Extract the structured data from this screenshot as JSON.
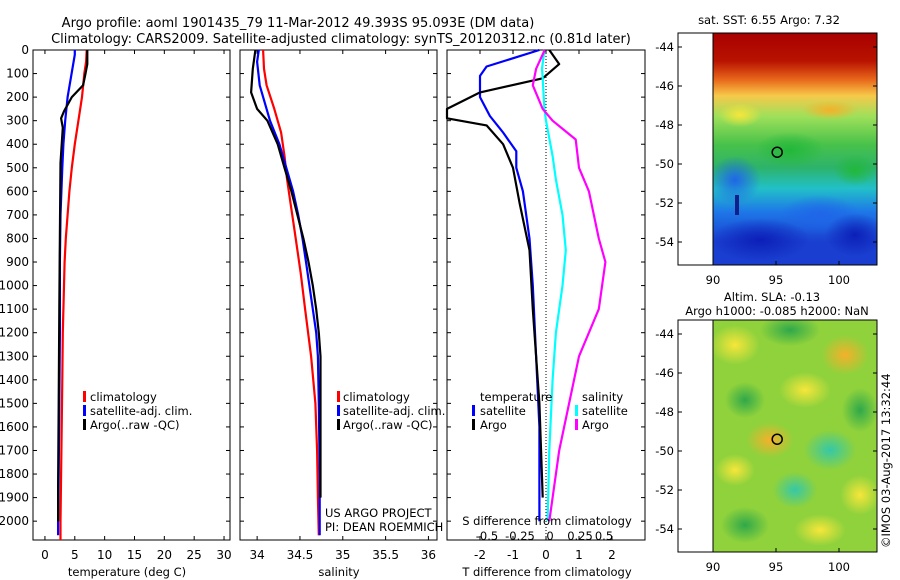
{
  "header": {
    "line1": "Argo profile: aoml 1901435_79 11-Mar-2012 49.393S 95.093E (DM data)",
    "line2": "Climatology: CARS2009. Satellite-adjusted climatology: synTS_20120312.nc (0.81d later)"
  },
  "colors": {
    "climatology": "#ff0000",
    "satellite": "#0000ff",
    "argo": "#000000",
    "salinity_satellite": "#00ffff",
    "salinity_argo": "#ff00ff"
  },
  "chart_data": [
    {
      "type": "line",
      "id": "temperature",
      "xlabel": "temperature (deg C)",
      "ylabel": "",
      "xlim": [
        -2,
        31
      ],
      "ylim": [
        2080,
        0
      ],
      "xticks": [
        0,
        5,
        10,
        15,
        20,
        25,
        30
      ],
      "yticks": [
        0,
        100,
        200,
        300,
        400,
        500,
        600,
        700,
        800,
        900,
        1000,
        1100,
        1200,
        1300,
        1400,
        1500,
        1600,
        1700,
        1800,
        1900,
        2000
      ],
      "legend": [
        "climatology",
        "satellite-adj. clim.",
        "Argo(..raw -QC)"
      ],
      "series": [
        {
          "name": "climatology",
          "color": "#ff0000",
          "points": [
            [
              7.0,
              0
            ],
            [
              6.9,
              50
            ],
            [
              6.6,
              100
            ],
            [
              6.2,
              200
            ],
            [
              5.6,
              300
            ],
            [
              5.0,
              400
            ],
            [
              4.5,
              500
            ],
            [
              4.1,
              600
            ],
            [
              3.8,
              700
            ],
            [
              3.5,
              800
            ],
            [
              3.3,
              900
            ],
            [
              3.2,
              1000
            ],
            [
              3.0,
              1200
            ],
            [
              2.9,
              1400
            ],
            [
              2.8,
              1600
            ],
            [
              2.7,
              1800
            ],
            [
              2.6,
              2000
            ],
            [
              2.6,
              2080
            ]
          ]
        },
        {
          "name": "satellite-adj. clim.",
          "color": "#0000ff",
          "points": [
            [
              5.0,
              0
            ],
            [
              5.0,
              20
            ],
            [
              4.6,
              80
            ],
            [
              3.8,
              200
            ],
            [
              3.4,
              300
            ],
            [
              3.1,
              400
            ],
            [
              2.9,
              500
            ],
            [
              2.6,
              700
            ],
            [
              2.5,
              900
            ],
            [
              2.5,
              1200
            ],
            [
              2.4,
              1500
            ],
            [
              2.3,
              1800
            ],
            [
              2.2,
              2000
            ],
            [
              2.2,
              2060
            ]
          ]
        },
        {
          "name": "Argo(..raw -QC)",
          "color": "#000000",
          "points": [
            [
              7.1,
              0
            ],
            [
              7.1,
              60
            ],
            [
              6.8,
              100
            ],
            [
              6.4,
              150
            ],
            [
              4.5,
              200
            ],
            [
              3.2,
              260
            ],
            [
              2.7,
              290
            ],
            [
              3.0,
              330
            ],
            [
              2.6,
              480
            ],
            [
              2.5,
              780
            ],
            [
              2.4,
              1100
            ],
            [
              2.3,
              1500
            ],
            [
              2.2,
              1850
            ],
            [
              2.2,
              2000
            ]
          ]
        }
      ]
    },
    {
      "type": "line",
      "id": "salinity",
      "xlabel": "salinity",
      "ylabel": "",
      "xlim": [
        33.8,
        36.1
      ],
      "ylim": [
        2080,
        0
      ],
      "xticks": [
        34,
        34.5,
        35,
        35.5,
        36
      ],
      "legend": [
        "climatology",
        "satellite-adj. clim.",
        "Argo(..raw -QC)"
      ],
      "annotations": [
        "US ARGO PROJECT",
        "PI: DEAN ROEMMICH"
      ],
      "series": [
        {
          "name": "climatology",
          "color": "#ff0000",
          "points": [
            [
              34.07,
              0
            ],
            [
              34.08,
              80
            ],
            [
              34.11,
              150
            ],
            [
              34.2,
              250
            ],
            [
              34.28,
              350
            ],
            [
              34.32,
              450
            ],
            [
              34.35,
              550
            ],
            [
              34.39,
              650
            ],
            [
              34.43,
              750
            ],
            [
              34.47,
              850
            ],
            [
              34.51,
              950
            ],
            [
              34.56,
              1100
            ],
            [
              34.63,
              1300
            ],
            [
              34.68,
              1500
            ],
            [
              34.7,
              1700
            ],
            [
              34.71,
              1900
            ],
            [
              34.72,
              2060
            ]
          ]
        },
        {
          "name": "satellite-adj. clim.",
          "color": "#0000ff",
          "points": [
            [
              34.02,
              0
            ],
            [
              34.0,
              50
            ],
            [
              34.03,
              150
            ],
            [
              34.15,
              300
            ],
            [
              34.26,
              400
            ],
            [
              34.34,
              500
            ],
            [
              34.42,
              600
            ],
            [
              34.48,
              700
            ],
            [
              34.53,
              800
            ],
            [
              34.57,
              900
            ],
            [
              34.61,
              1000
            ],
            [
              34.65,
              1100
            ],
            [
              34.69,
              1200
            ],
            [
              34.71,
              1300
            ],
            [
              34.72,
              1500
            ],
            [
              34.73,
              1800
            ],
            [
              34.73,
              2060
            ]
          ]
        },
        {
          "name": "Argo(..raw -QC)",
          "color": "#000000",
          "points": [
            [
              33.98,
              0
            ],
            [
              33.95,
              80
            ],
            [
              33.93,
              180
            ],
            [
              34.0,
              250
            ],
            [
              34.12,
              300
            ],
            [
              34.24,
              400
            ],
            [
              34.32,
              500
            ],
            [
              34.4,
              600
            ],
            [
              34.47,
              700
            ],
            [
              34.54,
              800
            ],
            [
              34.6,
              900
            ],
            [
              34.65,
              1000
            ],
            [
              34.69,
              1100
            ],
            [
              34.72,
              1200
            ],
            [
              34.74,
              1300
            ],
            [
              34.74,
              1500
            ],
            [
              34.74,
              1700
            ],
            [
              34.74,
              1900
            ]
          ]
        }
      ]
    },
    {
      "type": "line",
      "id": "difference",
      "xlabel": "T difference from climatology",
      "xlabel_top": "S difference from climatology",
      "xlim": [
        -3.0,
        3.0
      ],
      "ylim": [
        2080,
        0
      ],
      "xticks": [
        -2,
        -1,
        0,
        1,
        2
      ],
      "secondary_xticks": [
        "-0.5",
        "-0.25",
        "0",
        "0.25",
        "0.5"
      ],
      "legend_groups": [
        "temperature",
        "salinity"
      ],
      "legend": [
        "satellite",
        "Argo",
        "satellite",
        "Argo"
      ],
      "series": [
        {
          "name": "temperature satellite",
          "color": "#0000ff",
          "points": [
            [
              -0.2,
              0
            ],
            [
              -1.8,
              70
            ],
            [
              -2.0,
              110
            ],
            [
              -2.0,
              200
            ],
            [
              -1.7,
              280
            ],
            [
              -1.3,
              350
            ],
            [
              -0.9,
              430
            ],
            [
              -0.9,
              500
            ],
            [
              -0.7,
              600
            ],
            [
              -0.5,
              800
            ],
            [
              -0.4,
              1000
            ],
            [
              -0.3,
              1300
            ],
            [
              -0.2,
              1600
            ],
            [
              -0.2,
              2000
            ]
          ]
        },
        {
          "name": "temperature Argo",
          "color": "#000000",
          "points": [
            [
              0.1,
              0
            ],
            [
              0.4,
              60
            ],
            [
              -0.1,
              120
            ],
            [
              -2.0,
              180
            ],
            [
              -3.0,
              250
            ],
            [
              -3.0,
              290
            ],
            [
              -1.8,
              320
            ],
            [
              -1.3,
              400
            ],
            [
              -1.0,
              500
            ],
            [
              -0.8,
              650
            ],
            [
              -0.5,
              850
            ],
            [
              -0.4,
              1100
            ],
            [
              -0.2,
              1500
            ],
            [
              -0.1,
              1900
            ]
          ]
        },
        {
          "name": "salinity satellite",
          "color": "#00ffff",
          "points": [
            [
              -0.05,
              0
            ],
            [
              -0.12,
              80
            ],
            [
              -0.1,
              120
            ],
            [
              -0.05,
              250
            ],
            [
              0.0,
              300
            ],
            [
              0.2,
              450
            ],
            [
              0.3,
              550
            ],
            [
              0.5,
              700
            ],
            [
              0.6,
              850
            ],
            [
              0.5,
              1000
            ],
            [
              0.3,
              1200
            ],
            [
              0.2,
              1400
            ],
            [
              0.1,
              1700
            ],
            [
              0.05,
              2000
            ]
          ]
        },
        {
          "name": "salinity Argo",
          "color": "#ff00ff",
          "points": [
            [
              -0.04,
              0
            ],
            [
              -0.3,
              80
            ],
            [
              -0.4,
              150
            ],
            [
              -0.1,
              250
            ],
            [
              0.2,
              300
            ],
            [
              0.9,
              380
            ],
            [
              1.0,
              500
            ],
            [
              1.3,
              600
            ],
            [
              1.6,
              800
            ],
            [
              1.8,
              900
            ],
            [
              1.6,
              1100
            ],
            [
              1.0,
              1300
            ],
            [
              0.7,
              1500
            ],
            [
              0.4,
              1700
            ],
            [
              0.2,
              1900
            ],
            [
              0.1,
              2000
            ]
          ]
        }
      ]
    }
  ],
  "maps": {
    "sst": {
      "title": "sat. SST: 6.55 Argo: 7.32",
      "yticks": [
        "-44",
        "-46",
        "-48",
        "-50",
        "-52",
        "-54"
      ],
      "xticks": [
        "90",
        "95",
        "100"
      ]
    },
    "sla": {
      "title1": "Altim. SLA: -0.13",
      "title2": "Argo h1000: -0.085 h2000: NaN",
      "yticks": [
        "-44",
        "-46",
        "-48",
        "-50",
        "-52",
        "-54"
      ],
      "xticks": [
        "90",
        "95",
        "100"
      ]
    },
    "profile_position": {
      "lon": 95.093,
      "lat": -49.393
    }
  },
  "footer": {
    "credit": "©IMOS 03-Aug-2017 13:32:44"
  }
}
